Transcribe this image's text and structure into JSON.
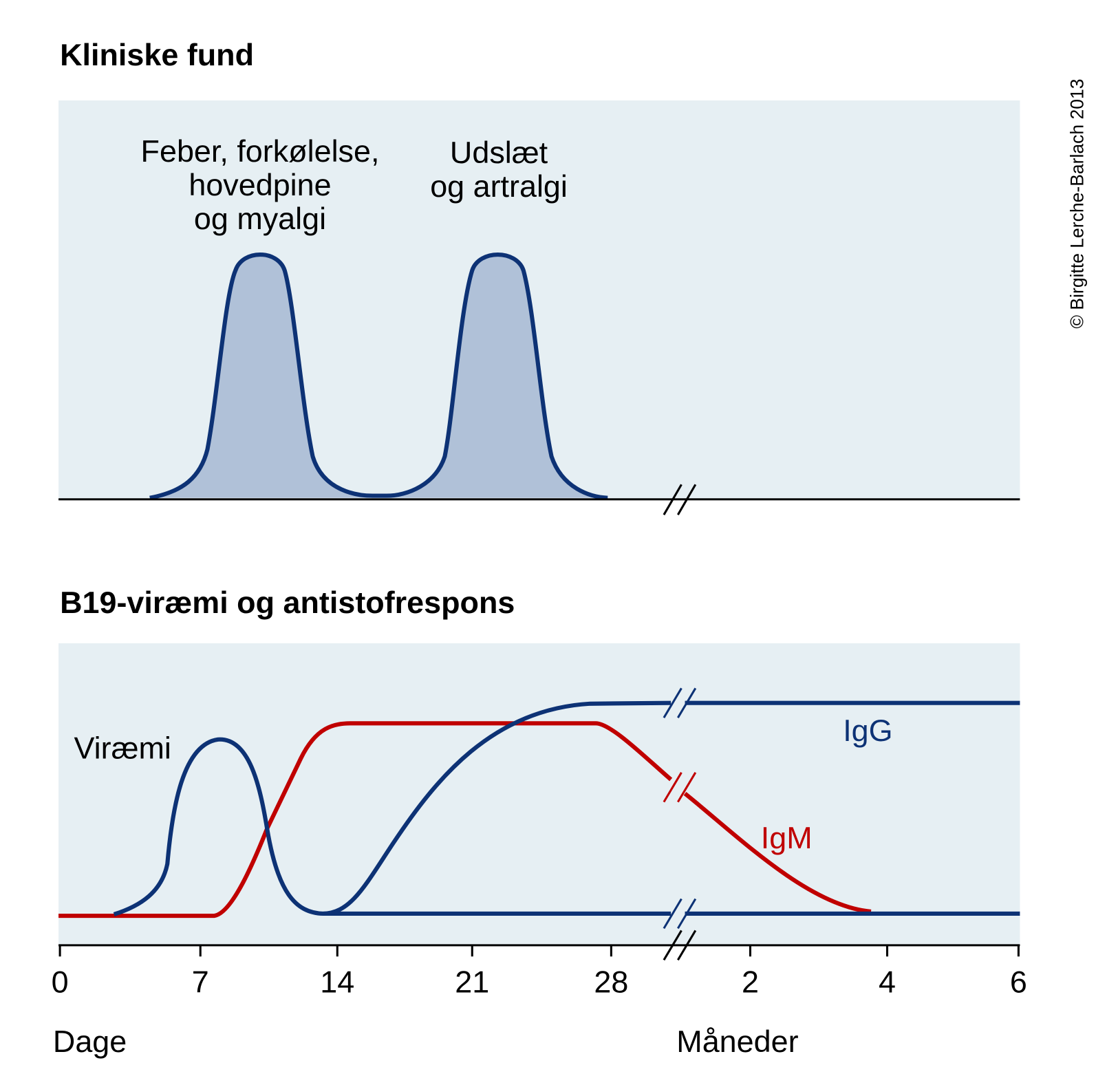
{
  "copyright": "© Birgitte Lerche-Barlach 2013",
  "panels": [
    {
      "title": "Kliniske fund",
      "annotations": [
        {
          "lines": [
            "Feber, forkølelse,",
            "hovedpine",
            "og myalgi"
          ]
        },
        {
          "lines": [
            "Udslæt",
            "og artralgi"
          ]
        }
      ]
    },
    {
      "title": "B19-viræmi og antistofrespons",
      "labels": [
        "Viræmi",
        "IgG",
        "IgM"
      ],
      "axis": {
        "ticks": [
          "0",
          "7",
          "14",
          "21",
          "28",
          "2",
          "4",
          "6"
        ],
        "titles": [
          "Dage",
          "Måneder"
        ]
      }
    }
  ]
}
